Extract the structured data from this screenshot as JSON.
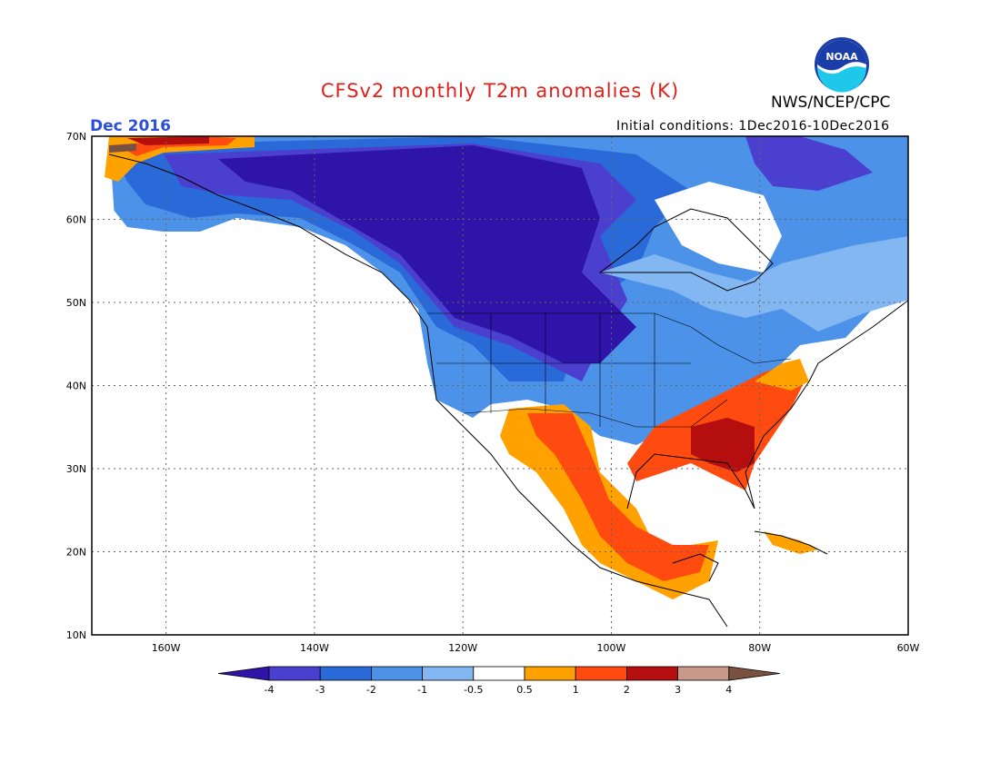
{
  "header": {
    "title": "CFSv2 monthly T2m anomalies (K)",
    "agency": "NWS/NCEP/CPC",
    "logo_text": "NOAA",
    "valid_month": "Dec 2016",
    "initial_conditions": "Initial conditions: 1Dec2016-10Dec2016"
  },
  "map": {
    "lat_labels": [
      "70N",
      "60N",
      "50N",
      "40N",
      "30N",
      "20N",
      "10N"
    ],
    "lon_labels": [
      "160W",
      "140W",
      "120W",
      "100W",
      "80W",
      "60W"
    ],
    "lat_values": [
      70,
      60,
      50,
      40,
      30,
      20,
      10
    ],
    "lon_values": [
      -160,
      -140,
      -120,
      -100,
      -80,
      -60
    ],
    "extent": {
      "lon_min": -170,
      "lon_max": -60,
      "lat_min": 10,
      "lat_max": 70
    }
  },
  "colorbar": {
    "labels": [
      "-4",
      "-3",
      "-2",
      "-1",
      "-0.5",
      "0.5",
      "1",
      "2",
      "3",
      "4"
    ],
    "colors": [
      "#2e14a8",
      "#4a3fcf",
      "#2a6ad8",
      "#4b92e8",
      "#82b7f2",
      "#ffffff",
      "#ffa200",
      "#ff4a10",
      "#b40e0e",
      "#c79a8a",
      "#7a5040"
    ]
  },
  "colors": {
    "title": "#e0201b",
    "valid_month": "#2b4fd8"
  }
}
